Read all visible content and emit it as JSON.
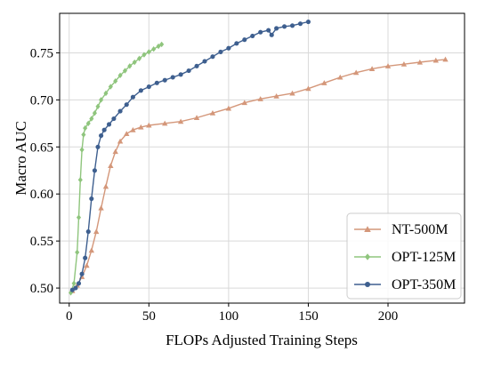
{
  "chart_data": {
    "type": "line",
    "title": "",
    "xlabel": "FLOPs Adjusted Training Steps",
    "ylabel": "Macro AUC",
    "xlim": [
      -6,
      248
    ],
    "ylim": [
      0.484,
      0.792
    ],
    "xticks": [
      0,
      50,
      100,
      150,
      200
    ],
    "yticks": [
      0.5,
      0.55,
      0.6,
      0.65,
      0.7,
      0.75
    ],
    "ytick_labels": [
      "0.50",
      "0.55",
      "0.60",
      "0.65",
      "0.70",
      "0.75"
    ],
    "grid": true,
    "legend_position": "lower-right",
    "series": [
      {
        "name": "NT-500M",
        "color": "#d4977a",
        "marker": "triangle",
        "x": [
          2,
          5,
          8,
          11,
          14,
          17,
          20,
          23,
          26,
          29,
          32,
          36,
          40,
          45,
          50,
          60,
          70,
          80,
          90,
          100,
          110,
          120,
          130,
          140,
          150,
          160,
          170,
          180,
          190,
          200,
          210,
          220,
          230,
          236
        ],
        "y": [
          0.497,
          0.503,
          0.512,
          0.524,
          0.54,
          0.56,
          0.585,
          0.608,
          0.63,
          0.645,
          0.656,
          0.664,
          0.668,
          0.671,
          0.673,
          0.675,
          0.677,
          0.681,
          0.686,
          0.691,
          0.697,
          0.701,
          0.704,
          0.707,
          0.712,
          0.718,
          0.724,
          0.729,
          0.733,
          0.736,
          0.738,
          0.74,
          0.742,
          0.743
        ]
      },
      {
        "name": "OPT-125M",
        "color": "#8fc57d",
        "marker": "diamond",
        "x": [
          1,
          3,
          5,
          6,
          7,
          8,
          9,
          10,
          12,
          14,
          16,
          18,
          20,
          23,
          26,
          29,
          32,
          35,
          38,
          41,
          44,
          47,
          50,
          53,
          56,
          58
        ],
        "y": [
          0.495,
          0.505,
          0.538,
          0.575,
          0.615,
          0.647,
          0.663,
          0.67,
          0.675,
          0.68,
          0.686,
          0.693,
          0.7,
          0.707,
          0.714,
          0.72,
          0.726,
          0.731,
          0.736,
          0.74,
          0.744,
          0.748,
          0.751,
          0.754,
          0.757,
          0.759
        ]
      },
      {
        "name": "OPT-350M",
        "color": "#3e5f8f",
        "marker": "circle",
        "x": [
          2,
          4,
          6,
          8,
          10,
          12,
          14,
          16,
          18,
          20,
          22,
          25,
          28,
          32,
          36,
          40,
          45,
          50,
          55,
          60,
          65,
          70,
          75,
          80,
          85,
          90,
          95,
          100,
          105,
          110,
          115,
          120,
          125,
          127,
          130,
          135,
          140,
          145,
          150
        ],
        "y": [
          0.498,
          0.5,
          0.505,
          0.515,
          0.532,
          0.56,
          0.595,
          0.625,
          0.65,
          0.662,
          0.668,
          0.674,
          0.68,
          0.688,
          0.695,
          0.703,
          0.71,
          0.714,
          0.718,
          0.721,
          0.724,
          0.727,
          0.731,
          0.736,
          0.741,
          0.746,
          0.751,
          0.755,
          0.76,
          0.764,
          0.768,
          0.772,
          0.774,
          0.769,
          0.776,
          0.778,
          0.779,
          0.781,
          0.783
        ]
      }
    ]
  }
}
